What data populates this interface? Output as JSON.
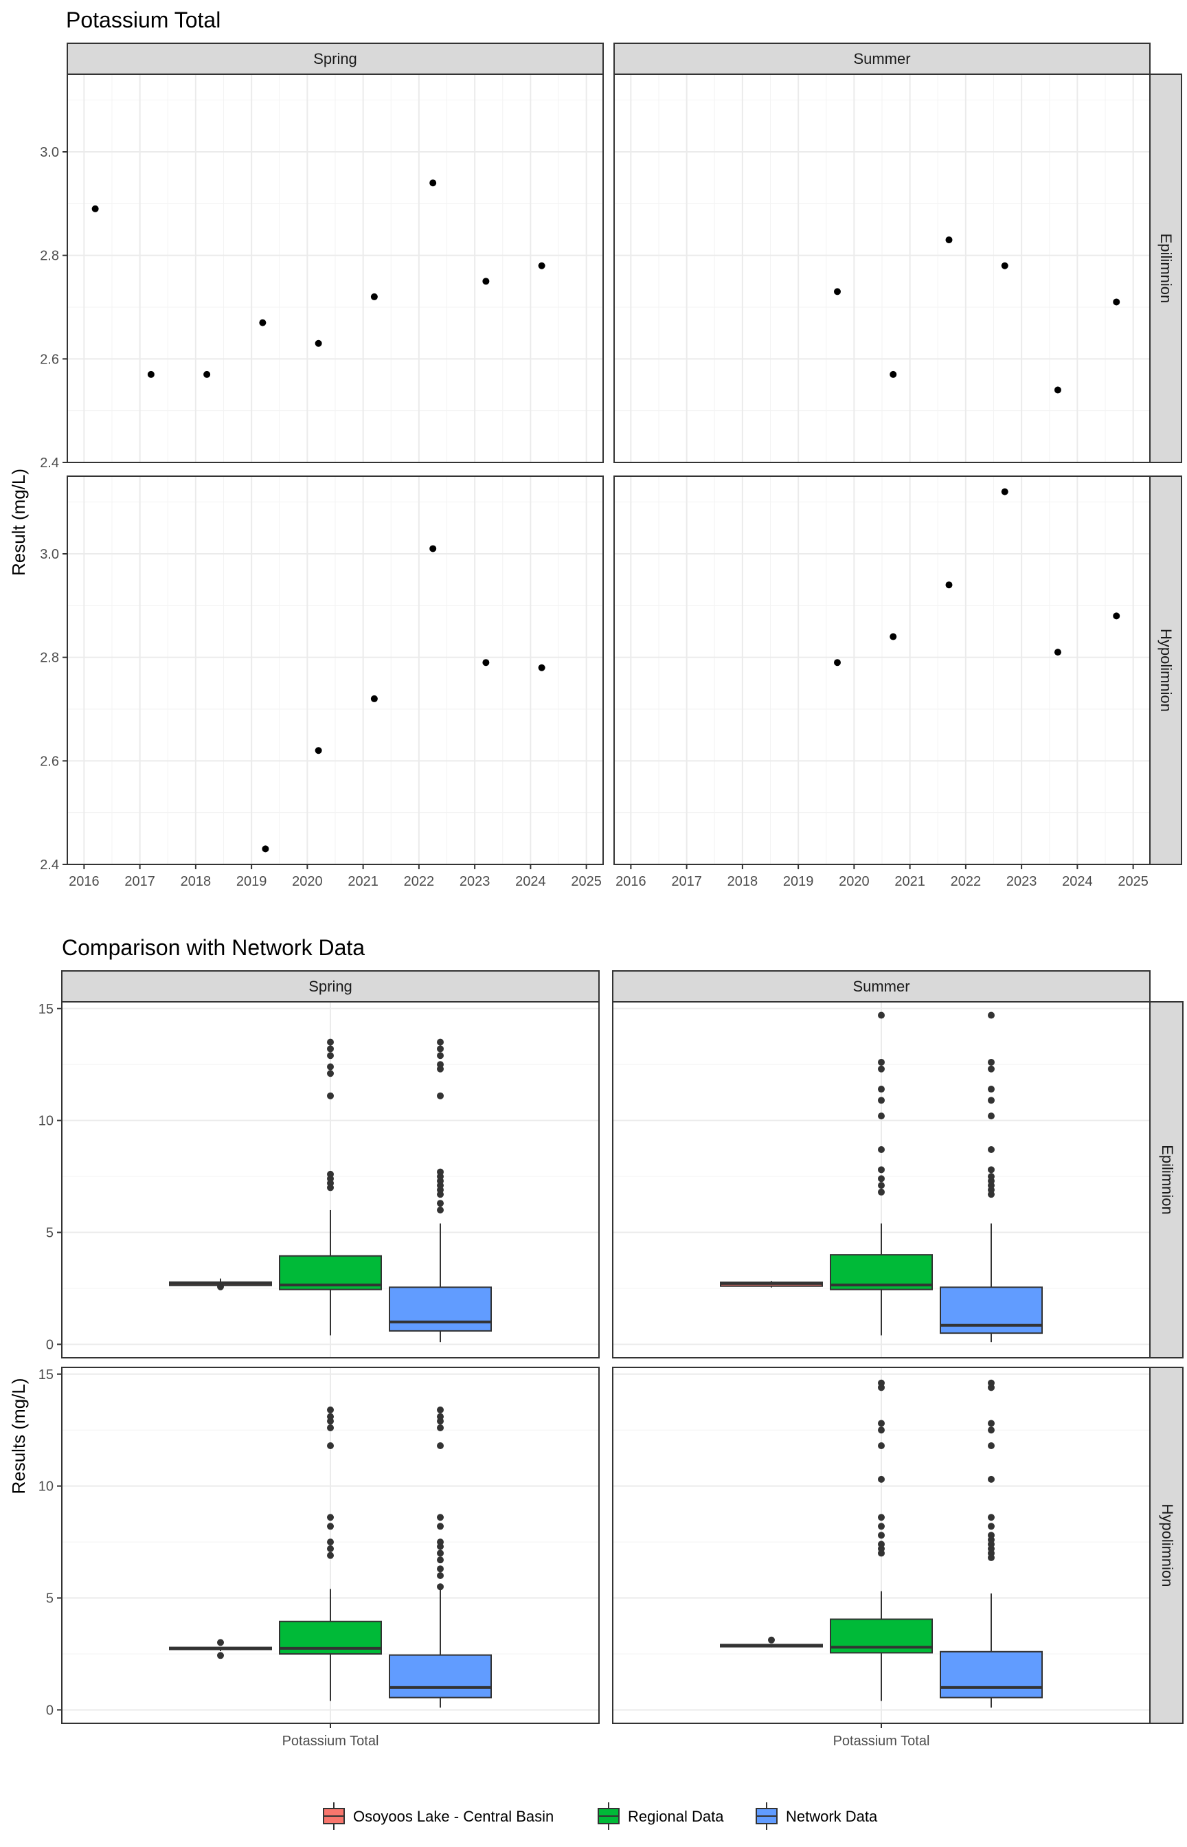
{
  "chart_data": [
    {
      "type": "scatter",
      "title": "Potassium Total",
      "ylabel": "Result (mg/L)",
      "xlabel": "",
      "ylim": [
        2.4,
        3.15
      ],
      "xlim": [
        2015.7,
        2025.3
      ],
      "y_ticks": [
        2.4,
        2.6,
        2.8,
        3.0
      ],
      "x_ticks": [
        2016,
        2017,
        2018,
        2019,
        2020,
        2021,
        2022,
        2023,
        2024,
        2025
      ],
      "grid": true,
      "facet_columns": [
        "Spring",
        "Summer"
      ],
      "facet_rows": [
        "Epilimnion",
        "Hypolimnion"
      ],
      "panels": [
        {
          "column": "Spring",
          "row": "Epilimnion",
          "x": [
            2016.2,
            2017.2,
            2018.2,
            2019.2,
            2020.2,
            2021.2,
            2022.25,
            2023.2,
            2024.2
          ],
          "y": [
            2.89,
            2.57,
            2.57,
            2.67,
            2.63,
            2.72,
            2.94,
            2.75,
            2.78
          ]
        },
        {
          "column": "Summer",
          "row": "Epilimnion",
          "x": [
            2019.7,
            2020.7,
            2021.7,
            2022.7,
            2023.65,
            2024.7
          ],
          "y": [
            2.73,
            2.57,
            2.83,
            2.78,
            2.54,
            2.71
          ]
        },
        {
          "column": "Spring",
          "row": "Hypolimnion",
          "x": [
            2019.25,
            2020.2,
            2021.2,
            2022.25,
            2023.2,
            2024.2
          ],
          "y": [
            2.43,
            2.62,
            2.72,
            3.01,
            2.79,
            2.78
          ]
        },
        {
          "column": "Summer",
          "row": "Hypolimnion",
          "x": [
            2019.7,
            2020.7,
            2021.7,
            2022.7,
            2023.65,
            2024.7
          ],
          "y": [
            2.79,
            2.84,
            2.94,
            3.12,
            2.81,
            2.88
          ]
        }
      ]
    },
    {
      "type": "box",
      "title": "Comparison with Network Data",
      "ylabel": "Results (mg/L)",
      "xlabel": "",
      "ylim": [
        -0.6,
        15.3
      ],
      "y_ticks": [
        0,
        5,
        10,
        15
      ],
      "categories": [
        "Potassium Total"
      ],
      "grid": true,
      "facet_columns": [
        "Spring",
        "Summer"
      ],
      "facet_rows": [
        "Epilimnion",
        "Hypolimnion"
      ],
      "legend": {
        "position": "bottom",
        "items": [
          {
            "label": "Osoyoos Lake - Central Basin",
            "color": "#f8766d"
          },
          {
            "label": "Regional Data",
            "color": "#00ba38"
          },
          {
            "label": "Network Data",
            "color": "#619cff"
          }
        ]
      },
      "panels": [
        {
          "column": "Spring",
          "row": "Epilimnion",
          "series": [
            {
              "name": "Osoyoos Lake - Central Basin",
              "color": "#f8766d",
              "min": 2.57,
              "q1": 2.63,
              "median": 2.72,
              "q3": 2.78,
              "max": 2.94,
              "outliers": [
                2.57
              ]
            },
            {
              "name": "Regional Data",
              "color": "#00ba38",
              "min": 0.4,
              "q1": 2.45,
              "median": 2.65,
              "q3": 3.95,
              "max": 6.0,
              "outliers": [
                7.0,
                7.2,
                7.4,
                7.6,
                11.1,
                12.1,
                12.4,
                12.9,
                13.2,
                13.5
              ]
            },
            {
              "name": "Network Data",
              "color": "#619cff",
              "min": 0.1,
              "q1": 0.6,
              "median": 1.0,
              "q3": 2.55,
              "max": 5.4,
              "outliers": [
                6.0,
                6.3,
                6.7,
                6.9,
                7.1,
                7.3,
                7.5,
                7.7,
                11.1,
                12.3,
                12.5,
                12.9,
                13.2,
                13.5
              ]
            }
          ]
        },
        {
          "column": "Summer",
          "row": "Epilimnion",
          "series": [
            {
              "name": "Osoyoos Lake - Central Basin",
              "color": "#f8766d",
              "min": 2.54,
              "q1": 2.6,
              "median": 2.72,
              "q3": 2.77,
              "max": 2.83,
              "outliers": []
            },
            {
              "name": "Regional Data",
              "color": "#00ba38",
              "min": 0.4,
              "q1": 2.45,
              "median": 2.65,
              "q3": 4.0,
              "max": 5.4,
              "outliers": [
                6.8,
                7.1,
                7.4,
                7.8,
                8.7,
                10.2,
                10.9,
                11.4,
                12.3,
                12.6,
                14.7
              ]
            },
            {
              "name": "Network Data",
              "color": "#619cff",
              "min": 0.1,
              "q1": 0.5,
              "median": 0.85,
              "q3": 2.55,
              "max": 5.4,
              "outliers": [
                6.7,
                6.9,
                7.1,
                7.3,
                7.5,
                7.8,
                8.7,
                10.2,
                10.9,
                11.4,
                12.3,
                12.6,
                14.7
              ]
            }
          ]
        },
        {
          "column": "Spring",
          "row": "Hypolimnion",
          "series": [
            {
              "name": "Osoyoos Lake - Central Basin",
              "color": "#f8766d",
              "min": 2.62,
              "q1": 2.7,
              "median": 2.75,
              "q3": 2.79,
              "max": 2.79,
              "outliers": [
                2.43,
                3.01
              ]
            },
            {
              "name": "Regional Data",
              "color": "#00ba38",
              "min": 0.4,
              "q1": 2.5,
              "median": 2.75,
              "q3": 3.95,
              "max": 5.4,
              "outliers": [
                6.9,
                7.2,
                7.5,
                8.2,
                8.6,
                11.8,
                12.6,
                12.9,
                13.1,
                13.4
              ]
            },
            {
              "name": "Network Data",
              "color": "#619cff",
              "min": 0.1,
              "q1": 0.55,
              "median": 1.0,
              "q3": 2.45,
              "max": 5.4,
              "outliers": [
                5.5,
                6.0,
                6.3,
                6.7,
                7.0,
                7.3,
                7.5,
                8.2,
                8.6,
                11.8,
                12.6,
                12.9,
                13.1,
                13.4
              ]
            }
          ]
        },
        {
          "column": "Summer",
          "row": "Hypolimnion",
          "series": [
            {
              "name": "Osoyoos Lake - Central Basin",
              "color": "#f8766d",
              "min": 2.79,
              "q1": 2.82,
              "median": 2.86,
              "q3": 2.92,
              "max": 2.94,
              "outliers": [
                3.12
              ]
            },
            {
              "name": "Regional Data",
              "color": "#00ba38",
              "min": 0.4,
              "q1": 2.55,
              "median": 2.8,
              "q3": 4.05,
              "max": 5.3,
              "outliers": [
                7.0,
                7.2,
                7.4,
                7.8,
                8.2,
                8.6,
                10.3,
                11.8,
                12.5,
                12.8,
                14.4,
                14.6
              ]
            },
            {
              "name": "Network Data",
              "color": "#619cff",
              "min": 0.1,
              "q1": 0.55,
              "median": 1.0,
              "q3": 2.6,
              "max": 5.2,
              "outliers": [
                6.8,
                7.0,
                7.2,
                7.4,
                7.6,
                7.8,
                8.2,
                8.6,
                10.3,
                11.8,
                12.5,
                12.8,
                14.4,
                14.6
              ]
            }
          ]
        }
      ]
    }
  ]
}
